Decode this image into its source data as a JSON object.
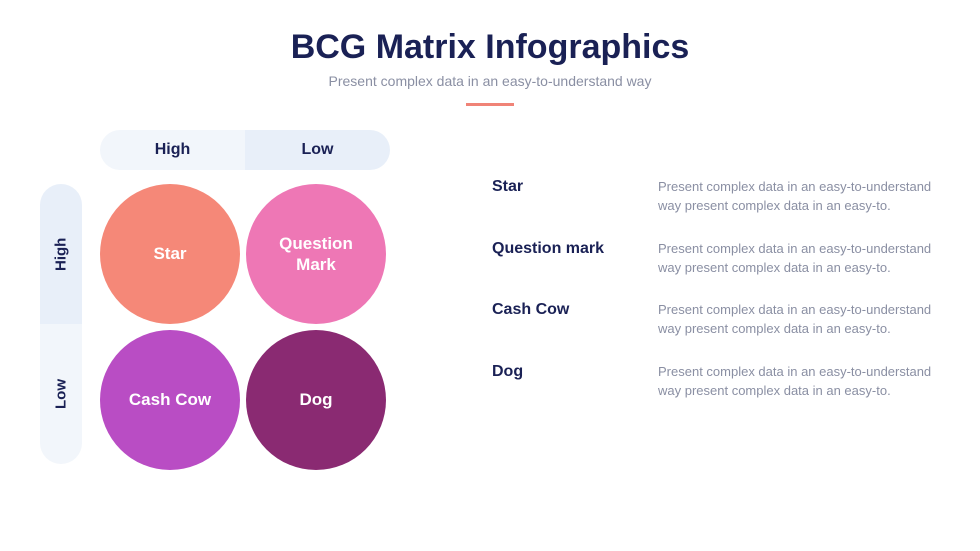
{
  "header": {
    "title": "BCG Matrix Infographics",
    "title_color": "#1a2155",
    "title_fontsize": 34,
    "subtitle": "Present complex data in an easy-to-understand way",
    "subtitle_color": "#8a8fa3",
    "subtitle_fontsize": 14,
    "divider_color": "#f08377"
  },
  "matrix": {
    "col_headers": {
      "bg_inactive": "#f2f6fb",
      "bg_active": "#e8eff9",
      "text_color": "#1a2155",
      "items": [
        {
          "label": "High",
          "active": false
        },
        {
          "label": "Low",
          "active": true
        }
      ]
    },
    "row_headers": {
      "bg_inactive": "#f2f6fb",
      "bg_active": "#e8eff9",
      "text_color": "#1a2155",
      "items": [
        {
          "label": "High",
          "active": true
        },
        {
          "label": "Low",
          "active": false
        }
      ]
    },
    "bubbles": [
      {
        "label": "Star",
        "color": "#f58878"
      },
      {
        "label": "Question Mark",
        "color": "#ee77b5"
      },
      {
        "label": "Cash Cow",
        "color": "#b94dc4"
      },
      {
        "label": "Dog",
        "color": "#8a2a72"
      }
    ],
    "bubble_text_color": "#ffffff",
    "bubble_fontsize": 17
  },
  "descriptions": {
    "label_color": "#1a2155",
    "text_color": "#8a8fa3",
    "items": [
      {
        "label": "Star",
        "text": "Present complex data in an easy-to-understand way present complex data in an easy-to."
      },
      {
        "label": "Question mark",
        "text": "Present complex data in an easy-to-understand way present complex data in an easy-to."
      },
      {
        "label": "Cash Cow",
        "text": "Present complex data in an easy-to-understand way present complex data in an easy-to."
      },
      {
        "label": "Dog",
        "text": "Present complex data in an easy-to-understand way present complex data in an easy-to."
      }
    ]
  }
}
